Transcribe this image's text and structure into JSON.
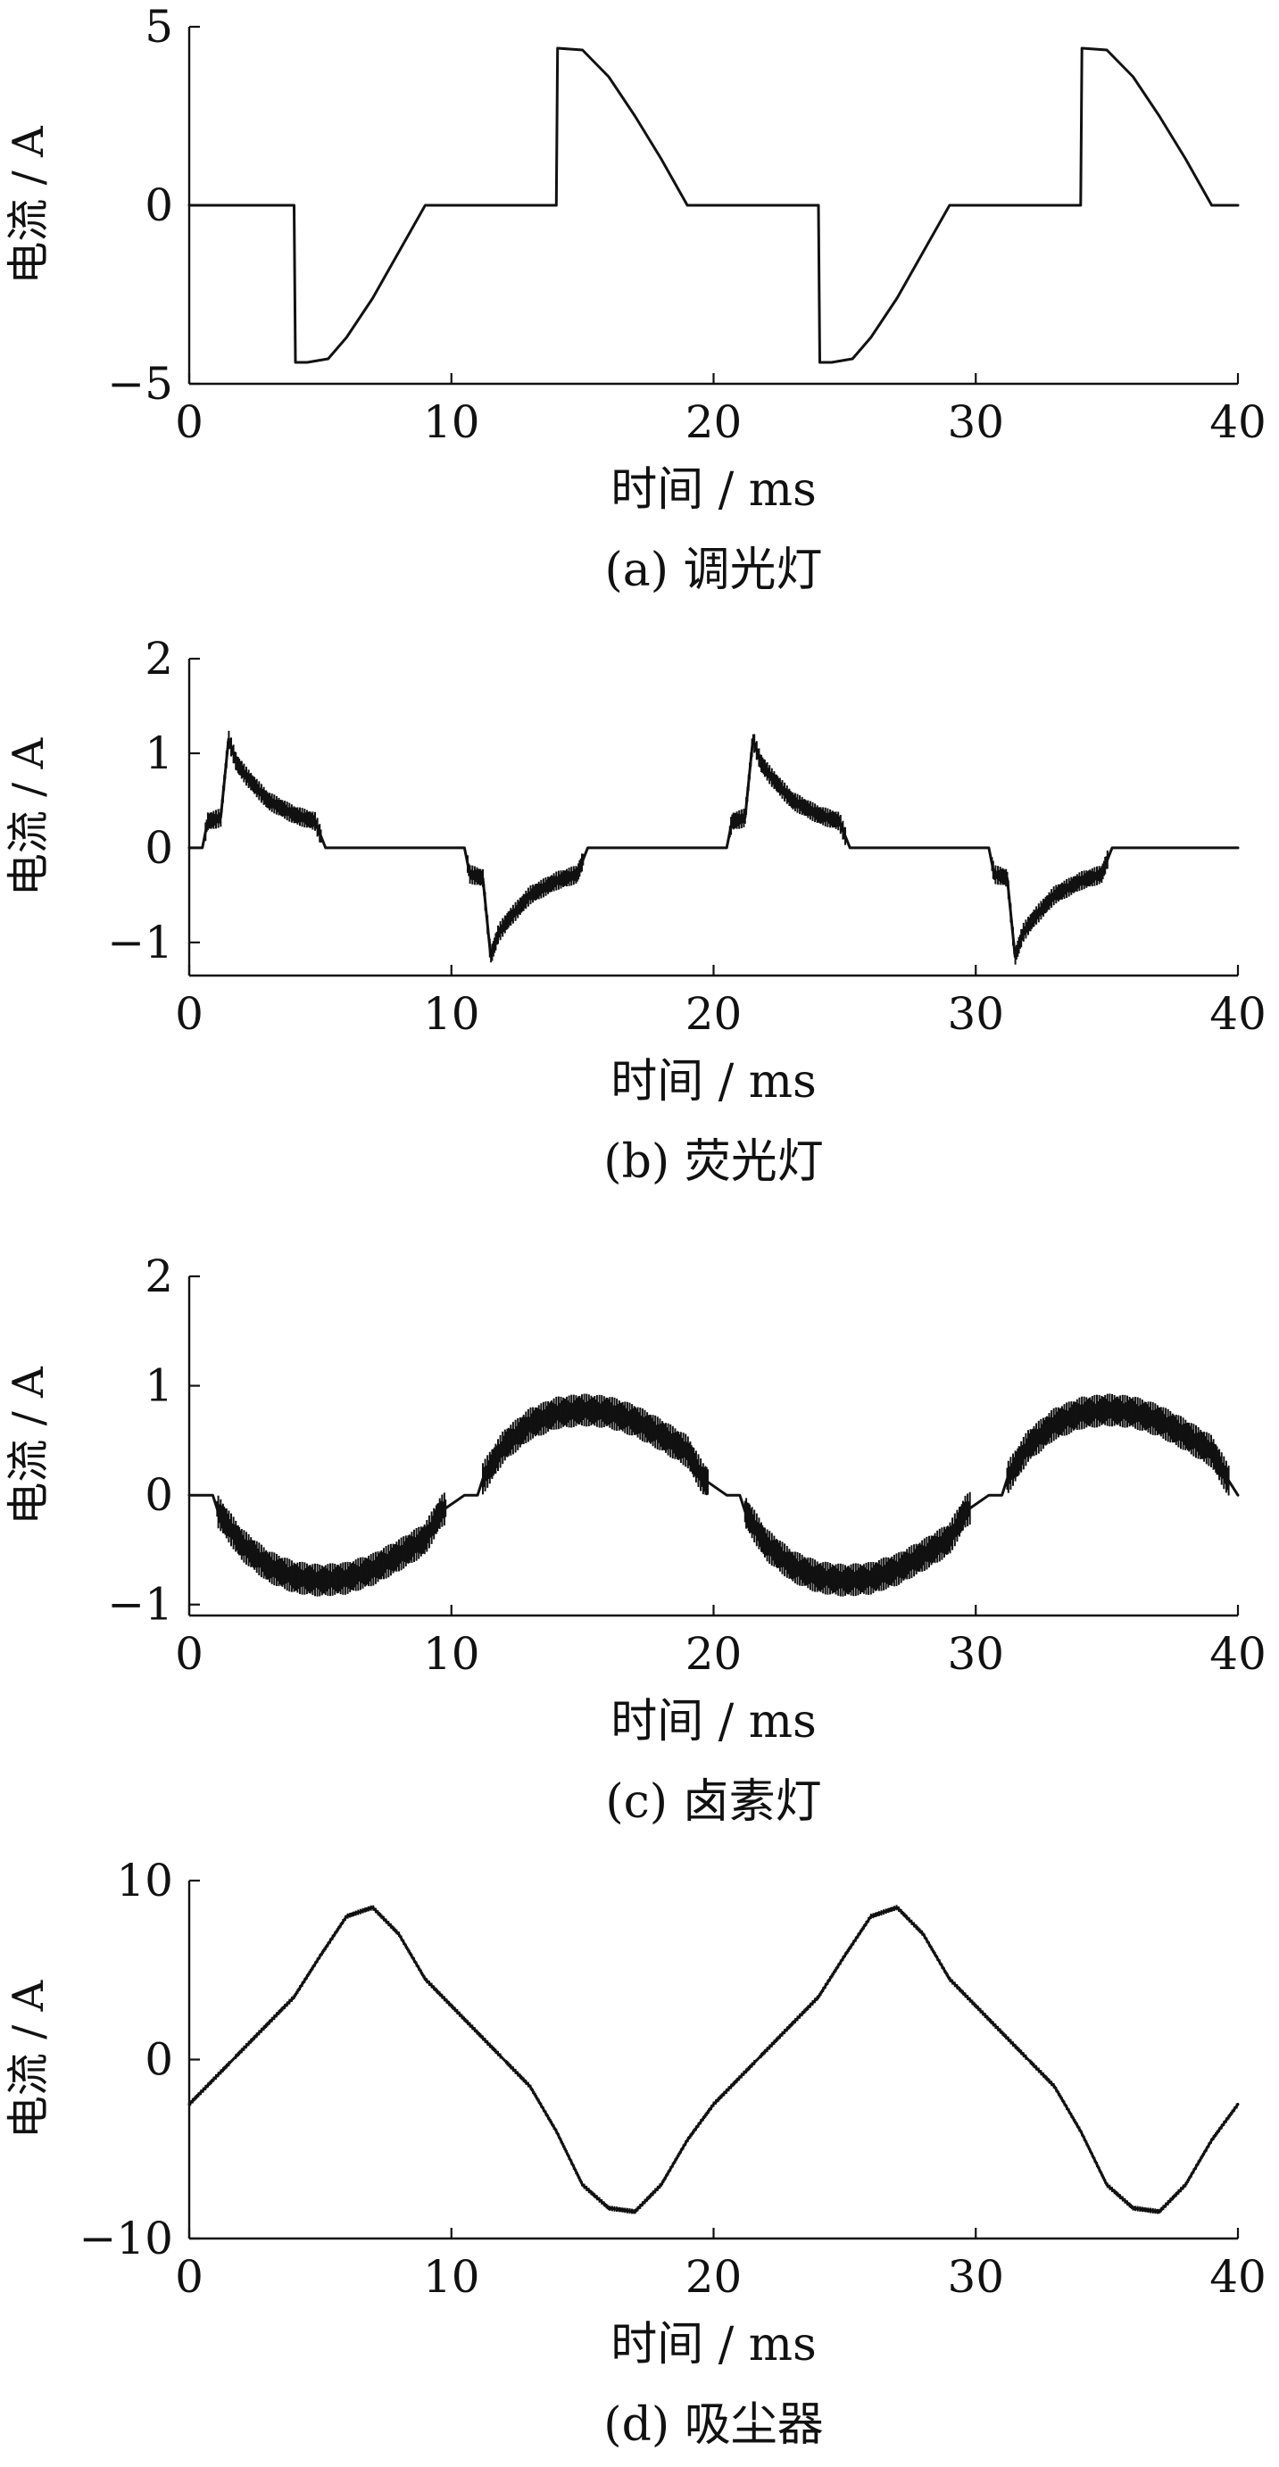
{
  "chart_data": [
    {
      "type": "line",
      "panel_label": "(a)  调光灯",
      "xlabel": "时间 / ms",
      "ylabel": "电流 / A",
      "xlim": [
        0,
        40
      ],
      "ylim": [
        -5,
        5
      ],
      "xticks": [
        0,
        10,
        20,
        30,
        40
      ],
      "yticks": [
        -5,
        0,
        5
      ],
      "series": [
        {
          "x": [
            0,
            4,
            4.05,
            4.5,
            5.3,
            6,
            7,
            8,
            9,
            14,
            14.05,
            15,
            16,
            17,
            18,
            19,
            24,
            24.05,
            24.5,
            25.3,
            26,
            27,
            28,
            29,
            34,
            34.05,
            35,
            36,
            37,
            38,
            39,
            40
          ],
          "y": [
            0,
            0,
            -4.4,
            -4.4,
            -4.3,
            -3.7,
            -2.6,
            -1.3,
            0,
            0,
            4.4,
            4.35,
            3.6,
            2.5,
            1.3,
            0,
            0,
            -4.4,
            -4.4,
            -4.3,
            -3.7,
            -2.6,
            -1.3,
            0,
            0,
            4.4,
            4.35,
            3.6,
            2.5,
            1.3,
            0,
            0
          ],
          "noise": 0
        }
      ]
    },
    {
      "type": "line",
      "panel_label": "(b)  荧光灯",
      "xlabel": "时间 / ms",
      "ylabel": "电流 / A",
      "xlim": [
        0,
        40
      ],
      "ylim": [
        -1.35,
        2
      ],
      "xticks": [
        0,
        10,
        20,
        30,
        40
      ],
      "yticks": [
        -1,
        0,
        1,
        2
      ],
      "series": [
        {
          "x": [
            0,
            0.5,
            0.7,
            1,
            1.2,
            1.5,
            1.8,
            2.2,
            3,
            4,
            4.8,
            5.2,
            10.5,
            10.7,
            11,
            11.2,
            11.5,
            11.8,
            12.2,
            13,
            14,
            14.8,
            15.2,
            20.5,
            20.7,
            21,
            21.2,
            21.5,
            21.8,
            22.2,
            23,
            24,
            24.8,
            25.2,
            30.5,
            30.7,
            31,
            31.2,
            31.5,
            31.8,
            32.2,
            33,
            34,
            34.8,
            35.2,
            40
          ],
          "y": [
            0,
            0,
            0.28,
            0.3,
            0.32,
            1.15,
            0.9,
            0.75,
            0.5,
            0.35,
            0.28,
            0,
            0,
            -0.28,
            -0.3,
            -0.32,
            -1.15,
            -0.9,
            -0.75,
            -0.5,
            -0.35,
            -0.28,
            0,
            0,
            0.28,
            0.3,
            0.32,
            1.15,
            0.9,
            0.75,
            0.5,
            0.35,
            0.28,
            0,
            0,
            -0.28,
            -0.3,
            -0.32,
            -1.15,
            -0.9,
            -0.75,
            -0.5,
            -0.35,
            -0.28,
            0,
            0
          ],
          "noise": 0.1
        }
      ]
    },
    {
      "type": "line",
      "panel_label": "(c)  卤素灯",
      "xlabel": "时间 / ms",
      "ylabel": "电流 / A",
      "xlim": [
        0,
        40
      ],
      "ylim": [
        -1.1,
        2
      ],
      "xticks": [
        0,
        10,
        20,
        30,
        40
      ],
      "yticks": [
        -1,
        0,
        1,
        2
      ],
      "series": [
        {
          "x": [
            0,
            0.9,
            1.1,
            2,
            3,
            4,
            5,
            6,
            7,
            8,
            9,
            9.6,
            10.5,
            11,
            11.2,
            12,
            13,
            14,
            15,
            16,
            17,
            18,
            19,
            19.6,
            20.5,
            21,
            21.2,
            22,
            23,
            24,
            25,
            26,
            27,
            28,
            29,
            29.6,
            30.5,
            31,
            31.2,
            32,
            33,
            34,
            35,
            36,
            37,
            38,
            39,
            39.6,
            40
          ],
          "y": [
            0,
            0,
            -0.15,
            -0.45,
            -0.65,
            -0.75,
            -0.78,
            -0.76,
            -0.68,
            -0.55,
            -0.4,
            -0.15,
            0,
            0,
            0.15,
            0.45,
            0.65,
            0.75,
            0.78,
            0.76,
            0.68,
            0.55,
            0.4,
            0.15,
            0,
            0,
            -0.15,
            -0.45,
            -0.65,
            -0.75,
            -0.78,
            -0.76,
            -0.68,
            -0.55,
            -0.4,
            -0.15,
            0,
            0,
            0.15,
            0.45,
            0.65,
            0.75,
            0.78,
            0.76,
            0.68,
            0.55,
            0.4,
            0.15,
            0
          ],
          "noise": 0.15
        }
      ]
    },
    {
      "type": "line",
      "panel_label": "(d)  吸尘器",
      "xlabel": "时间 / ms",
      "ylabel": "电流 / A",
      "xlim": [
        0,
        40
      ],
      "ylim": [
        -10,
        10
      ],
      "xticks": [
        0,
        10,
        20,
        30,
        40
      ],
      "yticks": [
        -10,
        0,
        10
      ],
      "series": [
        {
          "x": [
            0,
            1,
            2,
            3,
            4,
            5,
            6,
            7,
            8,
            9,
            10,
            11,
            12,
            13,
            14,
            15,
            16,
            17,
            18,
            19,
            20,
            21,
            22,
            23,
            24,
            25,
            26,
            27,
            28,
            29,
            30,
            31,
            32,
            33,
            34,
            35,
            36,
            37,
            38,
            39,
            40
          ],
          "y": [
            -2.5,
            -1,
            0.5,
            2,
            3.5,
            5.8,
            8,
            8.5,
            7,
            4.5,
            3,
            1.5,
            0,
            -1.5,
            -4,
            -7,
            -8.3,
            -8.5,
            -7,
            -4.5,
            -2.5,
            -1,
            0.5,
            2,
            3.5,
            5.8,
            8,
            8.5,
            7,
            4.5,
            3,
            1.5,
            0,
            -1.5,
            -4,
            -7,
            -8.3,
            -8.5,
            -7,
            -4.5,
            -2.5
          ],
          "noise": 0.15
        }
      ]
    }
  ]
}
